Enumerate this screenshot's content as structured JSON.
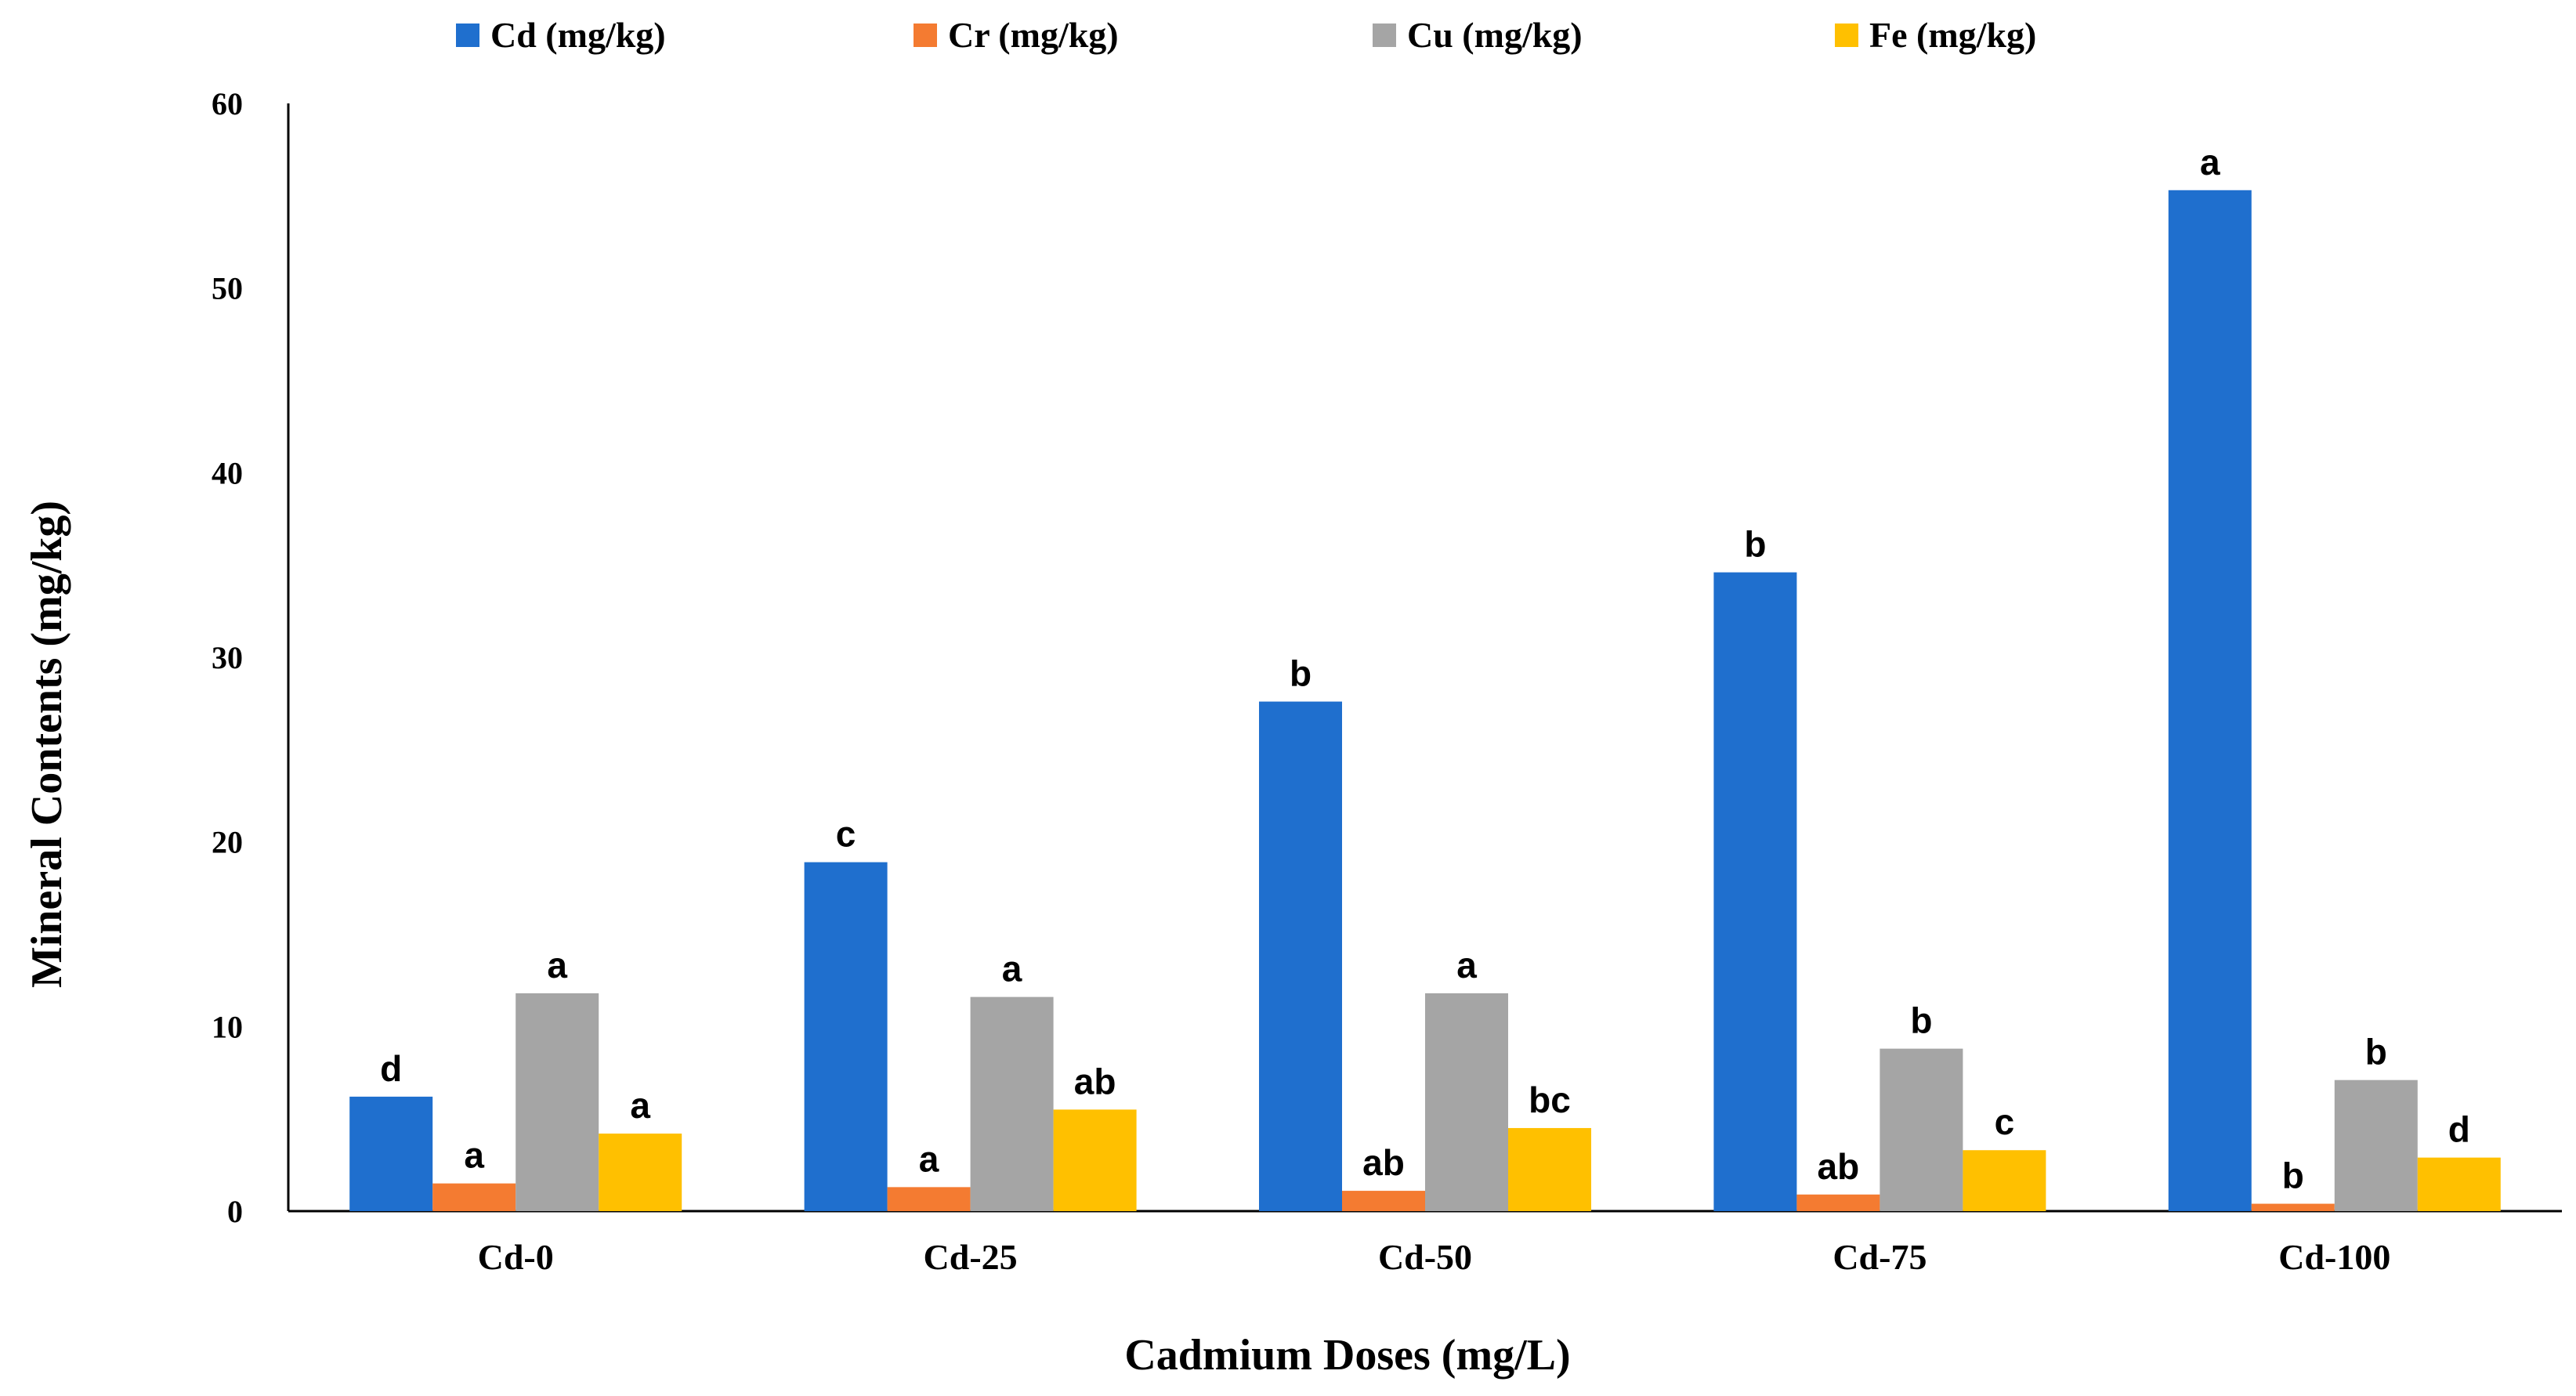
{
  "chart_data": {
    "type": "bar",
    "title": "",
    "xlabel": "Cadmium Doses (mg/L)",
    "ylabel": "Mineral Contents (mg/kg)",
    "ylim": [
      0,
      60
    ],
    "yticks": [
      "0",
      "10",
      "20",
      "30",
      "40",
      "50",
      "60"
    ],
    "grid": false,
    "legend_position": "top",
    "categories": [
      "Cd-0",
      "Cd-25",
      "Cd-50",
      "Cd-75",
      "Cd-100"
    ],
    "series": [
      {
        "name": "Cd (mg/kg)",
        "color": "#1f6fce",
        "values": [
          6.2,
          18.9,
          27.6,
          34.6,
          55.3
        ],
        "labels": [
          "d",
          "c",
          "b",
          "b",
          "a"
        ]
      },
      {
        "name": "Cr (mg/kg)",
        "color": "#f47b31",
        "values": [
          1.5,
          1.3,
          1.1,
          0.9,
          0.4
        ],
        "labels": [
          "a",
          "a",
          "ab",
          "ab",
          "b"
        ]
      },
      {
        "name": "Cu  (mg/kg)",
        "color": "#a5a5a5",
        "values": [
          11.8,
          11.6,
          11.8,
          8.8,
          7.1
        ],
        "labels": [
          "a",
          "a",
          "a",
          "b",
          "b"
        ]
      },
      {
        "name": "Fe  (mg/kg)",
        "color": "#ffc000",
        "values": [
          4.2,
          5.5,
          4.5,
          3.3,
          2.9
        ],
        "labels": [
          "a",
          "ab",
          "bc",
          "c",
          "d"
        ]
      }
    ]
  }
}
